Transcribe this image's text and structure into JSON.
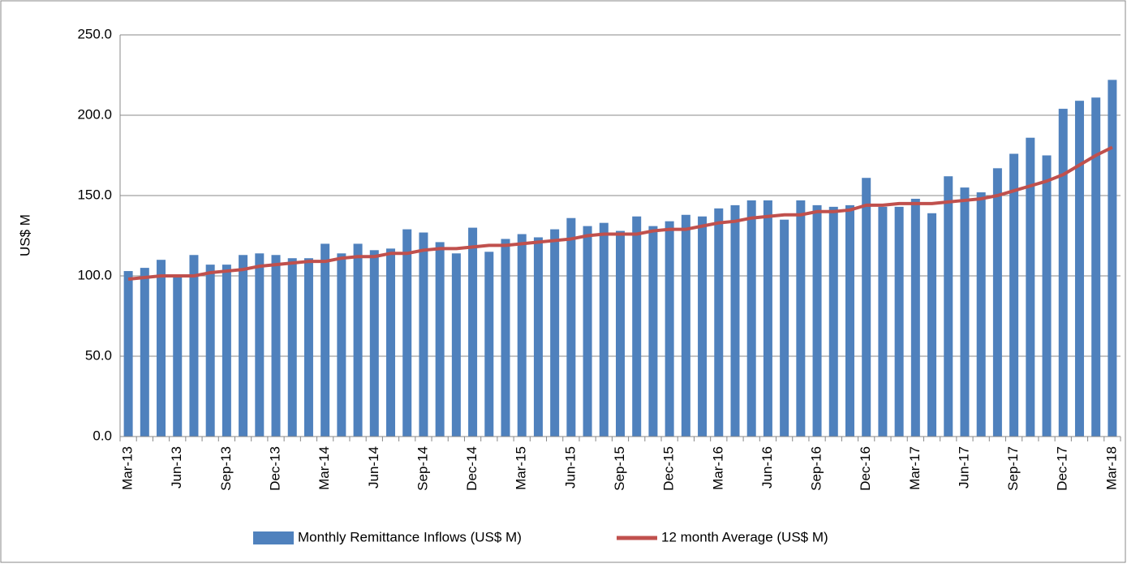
{
  "chart_data": {
    "type": "bar_line",
    "y_label": "US$ M",
    "categories": [
      "Mar-13",
      null,
      null,
      "Jun-13",
      null,
      null,
      "Sep-13",
      null,
      null,
      "Dec-13",
      null,
      null,
      "Mar-14",
      null,
      null,
      "Jun-14",
      null,
      null,
      "Sep-14",
      null,
      null,
      "Dec-14",
      null,
      null,
      "Mar-15",
      null,
      null,
      "Jun-15",
      null,
      null,
      "Sep-15",
      null,
      null,
      "Dec-15",
      null,
      null,
      "Mar-16",
      null,
      null,
      "Jun-16",
      null,
      null,
      "Sep-16",
      null,
      null,
      "Dec-16",
      null,
      null,
      "Mar-17",
      null,
      null,
      "Jun-17",
      null,
      null,
      "Sep-17",
      null,
      null,
      "Dec-17",
      null,
      null,
      "Mar-18"
    ],
    "series": [
      {
        "name": "Monthly Remittance Inflows (US$ M)",
        "type": "bar",
        "color": "#4f81bd",
        "values": [
          103,
          105,
          110,
          100,
          113,
          107,
          107,
          113,
          114,
          113,
          111,
          111,
          120,
          114,
          120,
          116,
          117,
          129,
          127,
          121,
          114,
          130,
          115,
          123,
          126,
          124,
          129,
          136,
          131,
          133,
          128,
          137,
          131,
          134,
          138,
          137,
          142,
          144,
          147,
          147,
          135,
          147,
          144,
          143,
          144,
          161,
          143,
          143,
          148,
          139,
          162,
          155,
          152,
          167,
          176,
          186,
          175,
          204,
          209,
          211,
          222
        ]
      },
      {
        "name": "12 month Average (US$ M)",
        "type": "line",
        "color": "#c0504d",
        "values": [
          98,
          99,
          100,
          100,
          100,
          102,
          103,
          104,
          106,
          107,
          108,
          109,
          109,
          111,
          112,
          112,
          114,
          114,
          116,
          117,
          117,
          118,
          119,
          119,
          120,
          121,
          122,
          123,
          125,
          126,
          126,
          126,
          128,
          129,
          129,
          131,
          133,
          134,
          136,
          137,
          138,
          138,
          140,
          140,
          141,
          144,
          144,
          145,
          145,
          145,
          146,
          147,
          148,
          150,
          153,
          156,
          159,
          163,
          169,
          175,
          180
        ]
      }
    ],
    "ylim": [
      0,
      250
    ],
    "yticks": [
      {
        "value": 0,
        "label": "0.0"
      },
      {
        "value": 50,
        "label": "50.0"
      },
      {
        "value": 100,
        "label": "100.0"
      },
      {
        "value": 150,
        "label": "150.0"
      },
      {
        "value": 200,
        "label": "200.0"
      },
      {
        "value": 250,
        "label": "250.0"
      }
    ],
    "grid": true,
    "legend": "bottom"
  }
}
